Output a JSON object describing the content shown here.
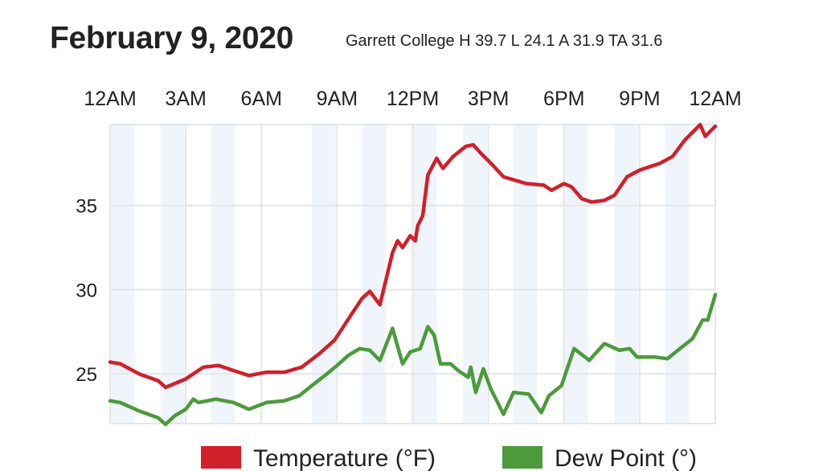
{
  "header": {
    "title": "February 9, 2020",
    "subtitle": "Garrett College H 39.7 L 24.1 A 31.9 TA 31.6"
  },
  "chart_data": {
    "type": "line",
    "title": "February 9, 2020",
    "xlabel": "",
    "ylabel": "",
    "x_ticks": [
      0,
      3,
      6,
      9,
      12,
      15,
      18,
      21,
      24
    ],
    "x_tick_labels": [
      "12AM",
      "3AM",
      "6AM",
      "9AM",
      "12PM",
      "3PM",
      "6PM",
      "9PM",
      "12AM"
    ],
    "xlim": [
      0,
      24
    ],
    "y_ticks": [
      25,
      30,
      35
    ],
    "y_tick_labels": [
      "25",
      "30",
      "35"
    ],
    "ylim": [
      22.05,
      39.8
    ],
    "grid": true,
    "legend_position": "bottom",
    "series": [
      {
        "name": "Temperature (°F)",
        "color": "#d0202a",
        "x": [
          0,
          0.4,
          1.15,
          1.9,
          2.2,
          3,
          3.7,
          4.3,
          4.9,
          5.5,
          6.2,
          6.9,
          7.6,
          8.3,
          8.9,
          9.6,
          10,
          10.3,
          10.7,
          11.2,
          11.4,
          11.6,
          11.9,
          12.1,
          12.2,
          12.4,
          12.6,
          12.95,
          13.2,
          13.6,
          14.1,
          14.4,
          14.7,
          15.1,
          15.6,
          16.5,
          17.2,
          17.5,
          18,
          18.3,
          18.7,
          19.1,
          19.6,
          20,
          20.5,
          21,
          21.8,
          22.3,
          22.8,
          23.4,
          23.6,
          24
        ],
        "y": [
          25.7,
          25.6,
          25.0,
          24.6,
          24.2,
          24.7,
          25.4,
          25.5,
          25.2,
          24.9,
          25.1,
          25.1,
          25.4,
          26.2,
          27.0,
          28.6,
          29.5,
          29.9,
          29.1,
          32.2,
          32.9,
          32.5,
          33.2,
          32.9,
          33.8,
          34.4,
          36.8,
          37.8,
          37.2,
          37.9,
          38.5,
          38.6,
          38.1,
          37.5,
          36.7,
          36.3,
          36.2,
          35.9,
          36.3,
          36.1,
          35.4,
          35.2,
          35.3,
          35.6,
          36.7,
          37.1,
          37.5,
          37.9,
          38.9,
          39.8,
          39.1,
          39.7
        ]
      },
      {
        "name": "Dew Point (°)",
        "color": "#4c9a3c",
        "x": [
          0,
          0.4,
          1.15,
          1.9,
          2.2,
          2.55,
          3,
          3.3,
          3.5,
          4.2,
          4.9,
          5.5,
          6.2,
          6.9,
          7.5,
          8,
          8.6,
          9,
          9.45,
          9.9,
          10.3,
          10.7,
          11.2,
          11.6,
          11.9,
          12.3,
          12.6,
          12.85,
          13.1,
          13.5,
          13.8,
          14.2,
          14.3,
          14.5,
          14.8,
          15.1,
          15.6,
          16,
          16.6,
          17.1,
          17.4,
          17.9,
          18.4,
          19,
          19.6,
          20.2,
          20.6,
          20.9,
          21.6,
          22.1,
          22.6,
          23.1,
          23.5,
          23.7,
          24
        ],
        "y": [
          23.4,
          23.3,
          22.8,
          22.4,
          22.0,
          22.5,
          22.9,
          23.5,
          23.3,
          23.5,
          23.3,
          22.9,
          23.3,
          23.4,
          23.7,
          24.3,
          25.0,
          25.5,
          26.1,
          26.5,
          26.4,
          25.8,
          27.7,
          25.6,
          26.3,
          26.5,
          27.8,
          27.3,
          25.6,
          25.6,
          25.2,
          24.8,
          25.4,
          23.9,
          25.3,
          24.1,
          22.6,
          23.9,
          23.8,
          22.7,
          23.7,
          24.3,
          26.5,
          25.8,
          26.8,
          26.4,
          26.5,
          26.0,
          26.0,
          25.9,
          26.5,
          27.1,
          28.2,
          28.2,
          29.7
        ]
      }
    ]
  }
}
